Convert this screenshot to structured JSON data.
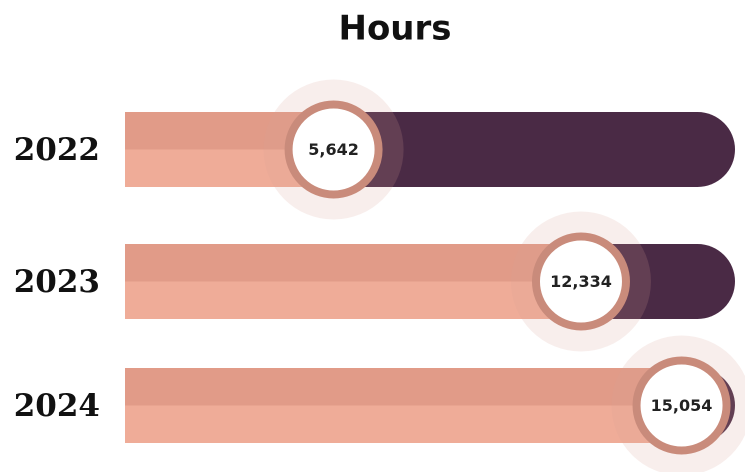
{
  "chart_data": {
    "type": "bar",
    "orientation": "horizontal",
    "title": "Hours",
    "categories": [
      "2022",
      "2023",
      "2024"
    ],
    "values": [
      5642,
      12334,
      15054
    ],
    "value_labels": [
      "5,642",
      "12,334",
      "15,054"
    ],
    "xlim": [
      0,
      16500
    ],
    "color": "#e19b88",
    "track_color": "#4a2a45"
  }
}
